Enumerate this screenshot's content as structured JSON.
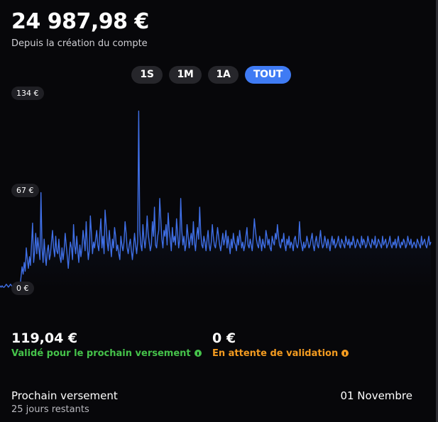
{
  "summary": {
    "total": "24 987,98 €",
    "subtitle": "Depuis la création du compte"
  },
  "ranges": [
    {
      "label": "1S",
      "active": false
    },
    {
      "label": "1M",
      "active": false
    },
    {
      "label": "1A",
      "active": false
    },
    {
      "label": "TOUT",
      "active": true
    }
  ],
  "chart_data": {
    "type": "line",
    "tick_labels": [
      "134 €",
      "67 €",
      "0 €"
    ],
    "ylim": [
      0,
      134
    ],
    "color": "#3f6fe6",
    "series": [
      {
        "values": [
          2,
          1,
          2,
          1,
          1,
          2,
          3,
          2,
          1,
          2,
          3,
          2,
          1,
          2,
          1,
          2,
          3,
          2,
          2,
          1,
          8,
          15,
          10,
          18,
          12,
          28,
          20,
          14,
          22,
          16,
          30,
          45,
          18,
          26,
          38,
          24,
          35,
          27,
          20,
          66,
          28,
          18,
          34,
          22,
          16,
          26,
          30,
          20,
          24,
          32,
          40,
          28,
          22,
          36,
          26,
          24,
          34,
          22,
          18,
          28,
          20,
          26,
          38,
          30,
          22,
          14,
          24,
          32,
          28,
          20,
          44,
          30,
          24,
          36,
          26,
          18,
          30,
          22,
          28,
          40,
          34,
          26,
          46,
          30,
          20,
          26,
          50,
          38,
          24,
          32,
          28,
          34,
          40,
          30,
          26,
          38,
          48,
          28,
          36,
          24,
          54,
          44,
          32,
          26,
          40,
          30,
          22,
          34,
          28,
          42,
          36,
          26,
          30,
          24,
          20,
          36,
          30,
          26,
          32,
          46,
          38,
          28,
          24,
          30,
          34,
          26,
          20,
          28,
          38,
          30,
          24,
          32,
          122,
          40,
          30,
          26,
          44,
          34,
          28,
          36,
          50,
          38,
          32,
          26,
          30,
          46,
          36,
          56,
          30,
          28,
          36,
          40,
          62,
          48,
          34,
          28,
          40,
          36,
          44,
          30,
          52,
          40,
          34,
          26,
          42,
          32,
          36,
          30,
          48,
          38,
          28,
          34,
          62,
          40,
          30,
          36,
          26,
          30,
          44,
          36,
          28,
          34,
          38,
          30,
          46,
          32,
          26,
          36,
          42,
          34,
          56,
          38,
          30,
          28,
          36,
          32,
          26,
          34,
          40,
          30,
          26,
          32,
          44,
          36,
          30,
          28,
          34,
          42,
          36,
          30,
          26,
          32,
          38,
          30,
          34,
          40,
          28,
          36,
          30,
          24,
          34,
          28,
          38,
          32,
          30,
          26,
          36,
          30,
          40,
          34,
          28,
          32,
          26,
          30,
          36,
          42,
          30,
          28,
          34,
          30,
          26,
          36,
          48,
          40,
          34,
          30,
          28,
          36,
          32,
          26,
          34,
          30,
          28,
          40,
          36,
          30,
          34,
          28,
          26,
          36,
          32,
          30,
          38,
          34,
          44,
          36,
          30,
          28,
          34,
          32,
          38,
          30,
          26,
          34,
          30,
          36,
          28,
          32,
          30,
          26,
          34,
          36,
          30,
          28,
          32,
          46,
          34,
          30,
          26,
          32,
          28,
          30,
          36,
          32,
          28,
          30,
          34,
          38,
          30,
          26,
          32,
          36,
          30,
          28,
          34,
          40,
          32,
          28,
          30,
          36,
          32,
          28,
          34,
          30,
          26,
          32,
          36,
          30,
          34,
          28,
          30,
          32,
          36,
          30,
          28,
          34,
          32,
          30,
          28,
          36,
          32,
          30,
          34,
          28,
          32,
          30,
          36,
          32,
          28,
          30,
          34,
          32,
          30,
          28,
          36,
          30,
          34,
          32,
          28,
          30,
          36,
          32,
          30,
          28,
          34,
          32,
          30,
          36,
          28,
          30,
          34,
          32,
          30,
          28,
          36,
          30,
          32,
          34,
          28,
          30,
          32,
          36,
          30,
          28,
          32,
          30,
          34,
          28,
          32,
          36,
          30,
          28,
          32,
          30,
          34,
          32,
          28,
          30,
          36,
          32,
          30,
          34,
          28,
          30,
          32,
          30,
          28,
          34,
          32,
          30,
          28,
          36,
          30,
          32,
          34,
          30,
          28,
          32,
          36,
          30,
          32
        ]
      }
    ]
  },
  "balances": [
    {
      "amount": "119,04 €",
      "label": "Validé pour le prochain versement",
      "status": "ok"
    },
    {
      "amount": "0 €",
      "label": "En attente de validation",
      "status": "pending"
    }
  ],
  "next_payout": {
    "title": "Prochain versement",
    "remaining": "25 jours restants",
    "date": "01 Novembre"
  }
}
